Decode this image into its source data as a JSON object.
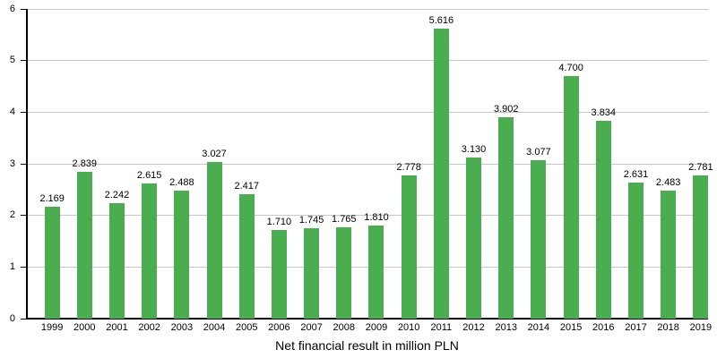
{
  "chart_data": {
    "type": "bar",
    "title": "",
    "xlabel": "Net financial result in million PLN",
    "ylabel": "",
    "categories": [
      "1999",
      "2000",
      "2001",
      "2002",
      "2003",
      "2004",
      "2005",
      "2006",
      "2007",
      "2008",
      "2009",
      "2010",
      "2011",
      "2012",
      "2013",
      "2014",
      "2015",
      "2016",
      "2017",
      "2018",
      "2019"
    ],
    "values": [
      2.169,
      2.839,
      2.242,
      2.615,
      2.488,
      3.027,
      2.417,
      1.71,
      1.745,
      1.765,
      1.81,
      2.778,
      5.616,
      3.13,
      3.902,
      3.077,
      4.7,
      3.834,
      2.631,
      2.483,
      2.781
    ],
    "value_labels": [
      "2.169",
      "2.839",
      "2.242",
      "2.615",
      "2.488",
      "3.027",
      "2.417",
      "1.710",
      "1.745",
      "1.765",
      "1.810",
      "2.778",
      "5.616",
      "3.130",
      "3.902",
      "3.077",
      "4.700",
      "3.834",
      "2.631",
      "2.483",
      "2.781"
    ],
    "ylim": [
      0,
      6
    ],
    "yticks": [
      0,
      1,
      2,
      3,
      4,
      5,
      6
    ],
    "grid": true,
    "legend": "none",
    "colors": {
      "bar": "#4aad4f",
      "gridline": "#c8c8c8",
      "axis": "#000000",
      "text": "#000000",
      "background": "#ffffff"
    }
  }
}
